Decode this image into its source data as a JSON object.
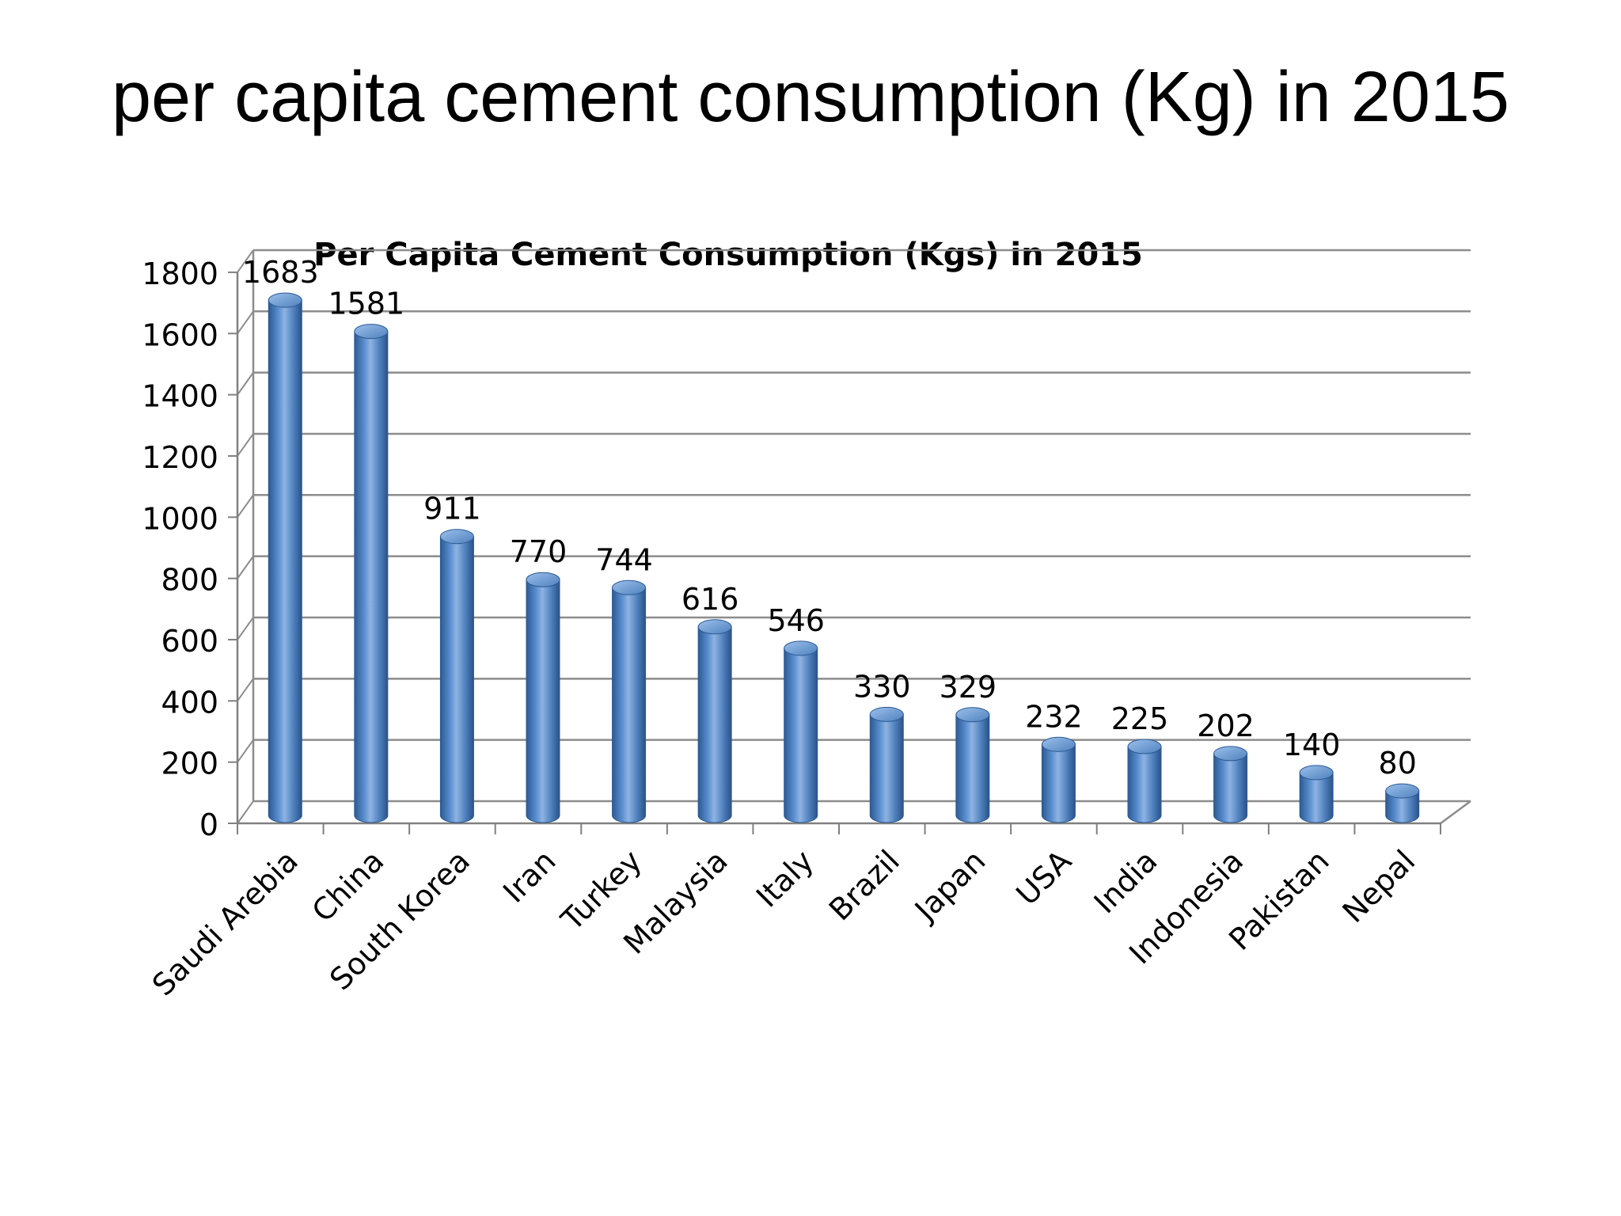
{
  "slide": {
    "title": "per capita cement consumption (Kg) in 2015"
  },
  "colors": {
    "bar": "#4f81bd",
    "bar_dark": "#2c5a93",
    "bar_light": "#8fb3e2",
    "gridline": "#8c8c8c"
  },
  "chart_data": {
    "type": "bar",
    "title": "Per Capita Cement Consumption (Kgs) in 2015",
    "xlabel": "",
    "ylabel": "",
    "ylim": [
      0,
      1800
    ],
    "yticks": [
      0,
      200,
      400,
      600,
      800,
      1000,
      1200,
      1400,
      1600,
      1800
    ],
    "grid": true,
    "legend": "none",
    "style": "3d-cylinder",
    "categories": [
      "Saudi Arebia",
      "China",
      "South Korea",
      "Iran",
      "Turkey",
      "Malaysia",
      "Italy",
      "Brazil",
      "Japan",
      "USA",
      "India",
      "Indonesia",
      "Pakistan",
      "Nepal"
    ],
    "values": [
      1683,
      1581,
      911,
      770,
      744,
      616,
      546,
      330,
      329,
      232,
      225,
      202,
      140,
      80
    ],
    "data_labels": [
      "1683",
      "1581",
      "911",
      "770",
      "744",
      "616",
      "546",
      "330",
      "329",
      "232",
      "225",
      "202",
      "140",
      "80"
    ]
  }
}
